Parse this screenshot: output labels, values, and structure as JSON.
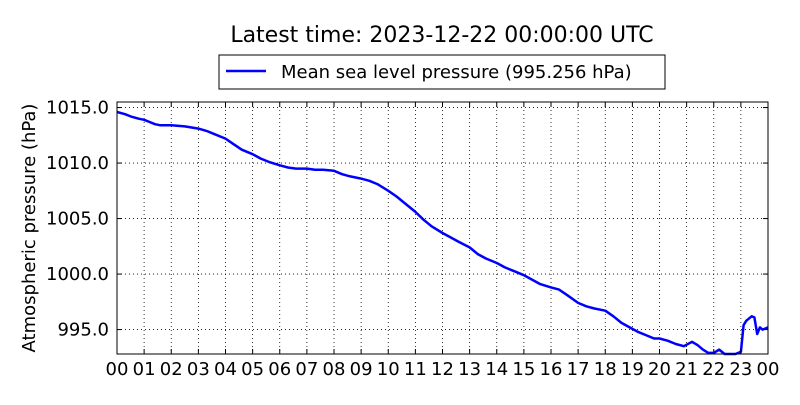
{
  "chart_data": {
    "type": "line",
    "title": "Latest time: 2023-12-22 00:00:00 UTC",
    "xlabel": "",
    "ylabel": "Atmospheric pressure (hPa)",
    "x_ticks": [
      "00",
      "01",
      "02",
      "03",
      "04",
      "05",
      "06",
      "07",
      "08",
      "09",
      "10",
      "11",
      "12",
      "13",
      "14",
      "15",
      "16",
      "17",
      "18",
      "19",
      "20",
      "21",
      "22",
      "23",
      "00"
    ],
    "y_ticks": [
      "995.0",
      "1000.0",
      "1005.0",
      "1010.0",
      "1015.0"
    ],
    "y_tick_values": [
      995.0,
      1000.0,
      1005.0,
      1010.0,
      1015.0
    ],
    "xlim": [
      0,
      24
    ],
    "ylim": [
      992.8,
      1015.5
    ],
    "grid": true,
    "legend_placement": "top-center",
    "series": [
      {
        "name": "Mean sea level pressure (995.256 hPa)",
        "color": "#0000ff",
        "x": [
          0,
          0.3,
          0.5,
          0.8,
          1.0,
          1.2,
          1.4,
          1.6,
          2.0,
          2.5,
          3.0,
          3.3,
          3.6,
          4.0,
          4.3,
          4.6,
          5.0,
          5.3,
          5.6,
          6.0,
          6.3,
          6.6,
          7.0,
          7.3,
          7.6,
          8.0,
          8.3,
          8.6,
          9.0,
          9.3,
          9.6,
          10.0,
          10.3,
          10.6,
          11.0,
          11.3,
          11.6,
          12.0,
          12.3,
          12.6,
          13.0,
          13.3,
          13.6,
          14.0,
          14.3,
          14.6,
          15.0,
          15.3,
          15.6,
          16.0,
          16.3,
          16.6,
          17.0,
          17.3,
          17.6,
          18.0,
          18.3,
          18.6,
          18.9,
          19.2,
          19.5,
          19.8,
          20.0,
          20.3,
          20.6,
          20.9,
          21.2,
          21.4,
          21.6,
          21.8,
          22.0,
          22.2,
          22.4,
          22.6,
          22.8,
          23.0,
          23.1,
          23.2,
          23.4,
          23.5,
          23.6,
          23.7,
          23.8,
          24.0
        ],
        "y": [
          1014.6,
          1014.4,
          1014.2,
          1014.0,
          1013.9,
          1013.7,
          1013.5,
          1013.4,
          1013.4,
          1013.3,
          1013.1,
          1012.9,
          1012.6,
          1012.2,
          1011.7,
          1011.2,
          1010.8,
          1010.4,
          1010.1,
          1009.8,
          1009.6,
          1009.5,
          1009.5,
          1009.4,
          1009.4,
          1009.3,
          1009.0,
          1008.8,
          1008.6,
          1008.4,
          1008.1,
          1007.5,
          1007.0,
          1006.4,
          1005.6,
          1004.9,
          1004.3,
          1003.7,
          1003.3,
          1002.9,
          1002.4,
          1001.8,
          1001.4,
          1001.0,
          1000.6,
          1000.3,
          999.9,
          999.5,
          999.1,
          998.8,
          998.6,
          998.1,
          997.4,
          997.1,
          996.9,
          996.7,
          996.2,
          995.6,
          995.2,
          994.8,
          994.5,
          994.2,
          994.2,
          994.0,
          993.7,
          993.5,
          993.9,
          993.6,
          993.2,
          992.9,
          992.9,
          993.2,
          992.8,
          992.8,
          992.8,
          993.0,
          995.4,
          995.8,
          996.2,
          996.1,
          994.6,
          995.2,
          995.0,
          995.2
        ]
      }
    ]
  }
}
